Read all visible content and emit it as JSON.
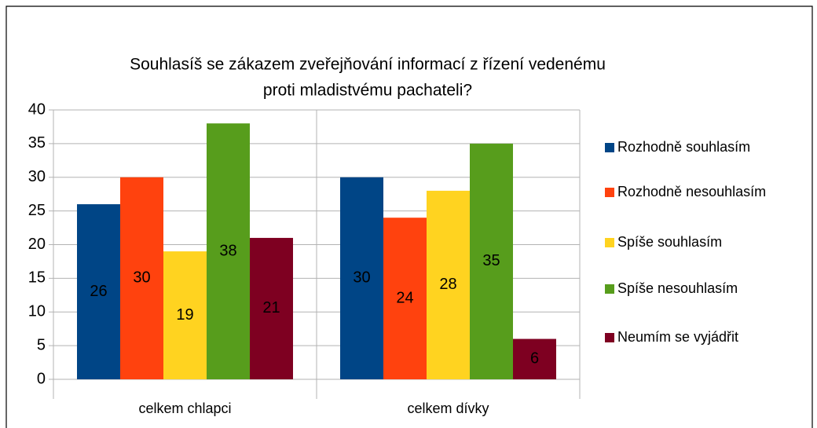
{
  "chart_data": {
    "type": "bar",
    "title": [
      "Souhlasíš se zákazem zveřejňování informací z řízení vedenému",
      "proti mladistvému pachateli?"
    ],
    "categories": [
      "celkem chlapci",
      "celkem dívky"
    ],
    "series": [
      {
        "name": "Rozhodně souhlasím",
        "color": "#004586",
        "values": [
          26,
          30
        ]
      },
      {
        "name": "Rozhodně nesouhlasím",
        "color": "#ff420e",
        "values": [
          30,
          24
        ]
      },
      {
        "name": "Spíše souhlasím",
        "color": "#ffd320",
        "values": [
          19,
          28
        ]
      },
      {
        "name": "Spíše nesouhlasím",
        "color": "#579d1c",
        "values": [
          38,
          35
        ]
      },
      {
        "name": "Neumím se vyjádřit",
        "color": "#7e0021",
        "values": [
          21,
          6
        ]
      }
    ],
    "ylim": [
      0,
      40
    ],
    "yticks": [
      0,
      5,
      10,
      15,
      20,
      25,
      30,
      35,
      40
    ],
    "grid": true,
    "legend": "right"
  }
}
